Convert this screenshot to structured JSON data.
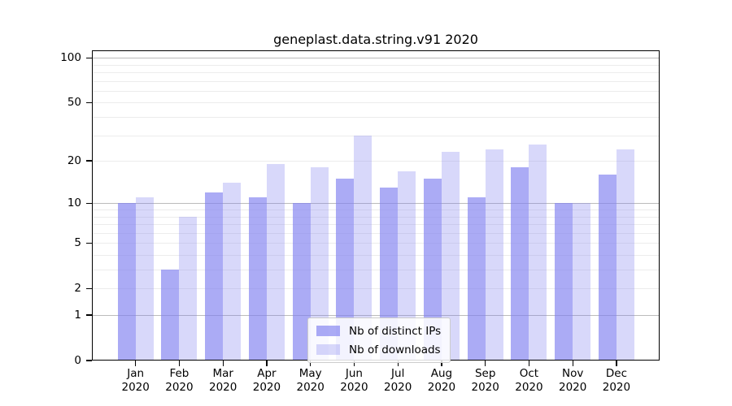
{
  "chart_data": {
    "type": "bar",
    "title": "geneplast.data.string.v91 2020",
    "year_label": "2020",
    "categories": [
      "Jan",
      "Feb",
      "Mar",
      "Apr",
      "May",
      "Jun",
      "Jul",
      "Aug",
      "Sep",
      "Oct",
      "Nov",
      "Dec"
    ],
    "series": [
      {
        "name": "Nb of distinct IPs",
        "color": "rgba(127,127,240,0.66)",
        "values": [
          10,
          3,
          12,
          11,
          10,
          15,
          13,
          15,
          11,
          18,
          10,
          16
        ]
      },
      {
        "name": "Nb of downloads",
        "color": "rgba(127,127,240,0.30)",
        "values": [
          11,
          8,
          14,
          19,
          18,
          30,
          17,
          23,
          24,
          26,
          10,
          24
        ]
      }
    ],
    "xlabel": "",
    "ylabel": "",
    "y_scale": "log10(1+x)",
    "y_ticks": [
      0,
      1,
      2,
      5,
      10,
      20,
      50,
      100
    ],
    "y_minor_gridlines": [
      2,
      3,
      4,
      5,
      6,
      7,
      8,
      9,
      20,
      30,
      40,
      50,
      60,
      70,
      80,
      90
    ],
    "y_major_gridlines": [
      1,
      10,
      100
    ],
    "ylim": [
      0,
      110
    ],
    "grid": "on",
    "legend_position": "lower center",
    "colors": {
      "background": "#ffffff",
      "frame": "#000000",
      "major_grid": "#bbbbbb",
      "minor_grid": "#ececec",
      "bar_distinct_ips": "rgba(127,127,240,0.66)",
      "bar_downloads": "rgba(127,127,240,0.30)"
    }
  }
}
